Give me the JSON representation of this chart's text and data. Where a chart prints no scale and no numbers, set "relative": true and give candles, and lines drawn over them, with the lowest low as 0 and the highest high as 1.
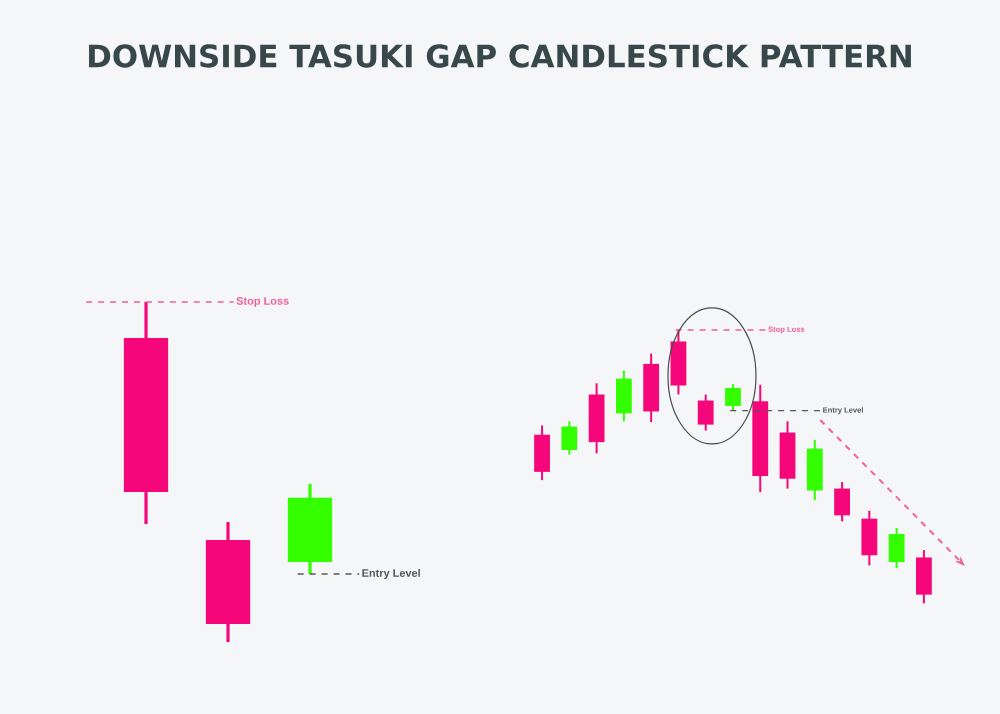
{
  "chart_data": [
    {
      "type": "candlestick",
      "title": "DOWNSIDE TASUKI GAP CANDLESTICK PATTERN",
      "relative": true,
      "categories": [
        null,
        null,
        null
      ],
      "ohlc": [
        [
          0.894,
          1,
          0.347,
          0.441
        ],
        [
          0.3,
          0.353,
          0,
          0.053
        ],
        [
          0.235,
          0.465,
          0.2,
          0.424
        ]
      ],
      "colors": [
        "#f5077a",
        "#f5077a",
        "#33ff00"
      ],
      "ref_lines": [
        {
          "axis": "y",
          "value": 1,
          "label": "Stop Loss",
          "color": "#f0609a",
          "line_style": "dashed"
        },
        {
          "axis": "y",
          "value": 0.2,
          "label": "Entry Level",
          "color": "#555555",
          "line_style": "dashed"
        }
      ]
    },
    {
      "type": "candlestick",
      "relative": true,
      "categories": [
        null,
        null,
        null,
        null,
        null,
        null,
        null,
        null,
        null,
        null,
        null,
        null,
        null,
        null,
        null
      ],
      "ohlc": [
        [
          0.617,
          0.651,
          0.451,
          0.481
        ],
        [
          0.561,
          0.666,
          0.544,
          0.647
        ],
        [
          0.764,
          0.805,
          0.549,
          0.59
        ],
        [
          0.695,
          0.852,
          0.666,
          0.822
        ],
        [
          0.876,
          0.914,
          0.663,
          0.702
        ],
        [
          0.958,
          1,
          0.764,
          0.797
        ],
        [
          0.742,
          0.764,
          0.632,
          0.654
        ],
        [
          0.722,
          0.802,
          0.707,
          0.788
        ],
        [
          0.739,
          0.8,
          0.407,
          0.466
        ],
        [
          0.625,
          0.666,
          0.42,
          0.456
        ],
        [
          0.413,
          0.598,
          0.378,
          0.566
        ],
        [
          0.42,
          0.444,
          0.3,
          0.322
        ],
        [
          0.31,
          0.339,
          0.139,
          0.176
        ],
        [
          0.151,
          0.276,
          0.129,
          0.254
        ],
        [
          0.168,
          0.195,
          0,
          0.032
        ]
      ],
      "colors": [
        "#f5077a",
        "#33ff00",
        "#f5077a",
        "#33ff00",
        "#f5077a",
        "#f5077a",
        "#f5077a",
        "#33ff00",
        "#f5077a",
        "#f5077a",
        "#33ff00",
        "#f5077a",
        "#f5077a",
        "#33ff00",
        "#f5077a"
      ],
      "ref_lines": [
        {
          "axis": "y",
          "value": 1,
          "label": "Stop Loss",
          "color": "#f0609a",
          "line_style": "dashed"
        },
        {
          "axis": "y",
          "value": 0.705,
          "label": "Entry Level",
          "color": "#555555",
          "line_style": "dashed"
        }
      ]
    }
  ]
}
